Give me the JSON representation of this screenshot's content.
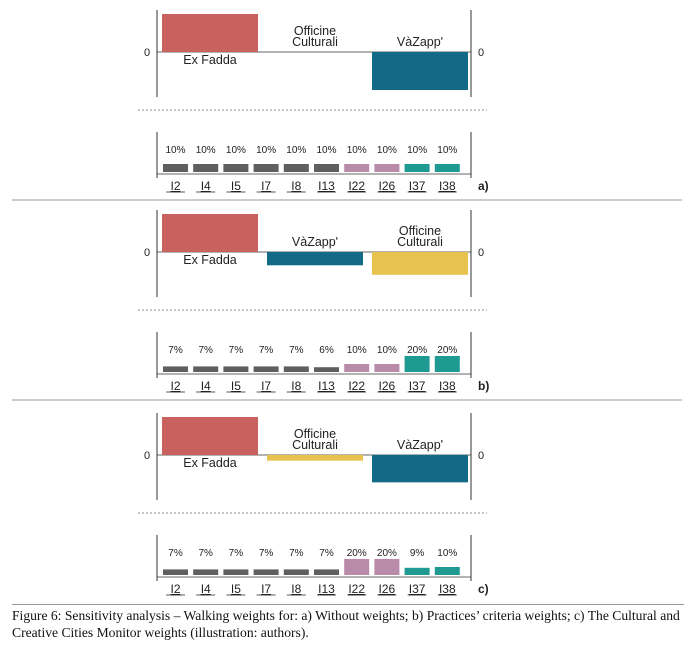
{
  "figure": {
    "caption": "Figure 6: Sensitivity analysis – Walking weights for: a) Without weights; b) Practices’ criteria weights; c) The Cultural and Creative Cities Monitor weights (illustration: authors)."
  },
  "chart_data": [
    {
      "panel": "a)",
      "top": {
        "type": "bar",
        "axis_label_left": "0",
        "axis_label_right": "0",
        "bars": [
          {
            "label": "Ex Fadda",
            "value": 1.0,
            "color": "#c9625f"
          },
          {
            "label": "Officine Culturali",
            "value": 0.0,
            "color": "#e8c24e"
          },
          {
            "label": "VàZapp'",
            "value": -1.0,
            "color": "#136a86"
          }
        ]
      },
      "bottom": {
        "type": "bar",
        "categories": [
          "I2",
          "I4",
          "I5",
          "I7",
          "I8",
          "I13",
          "I22",
          "I26",
          "I37",
          "I38"
        ],
        "weights": [
          10,
          10,
          10,
          10,
          10,
          10,
          10,
          10,
          10,
          10
        ],
        "value_labels": [
          "10%",
          "10%",
          "10%",
          "10%",
          "10%",
          "10%",
          "10%",
          "10%",
          "10%",
          "10%"
        ],
        "colors": [
          "#5f5f5f",
          "#5f5f5f",
          "#5f5f5f",
          "#5f5f5f",
          "#5f5f5f",
          "#5f5f5f",
          "#b98ba8",
          "#b98ba8",
          "#1f9a92",
          "#1f9a92"
        ]
      }
    },
    {
      "panel": "b)",
      "top": {
        "type": "bar",
        "axis_label_left": "0",
        "axis_label_right": "0",
        "bars": [
          {
            "label": "Ex Fadda",
            "value": 1.0,
            "color": "#c9625f"
          },
          {
            "label": "VàZapp'",
            "value": -0.35,
            "color": "#136a86"
          },
          {
            "label": "Officine Culturali",
            "value": -0.6,
            "color": "#e8c24e"
          }
        ]
      },
      "bottom": {
        "type": "bar",
        "categories": [
          "I2",
          "I4",
          "I5",
          "I7",
          "I8",
          "I13",
          "I22",
          "I26",
          "I37",
          "I38"
        ],
        "weights": [
          7,
          7,
          7,
          7,
          7,
          6,
          10,
          10,
          20,
          20
        ],
        "value_labels": [
          "7%",
          "7%",
          "7%",
          "7%",
          "7%",
          "6%",
          "10%",
          "10%",
          "20%",
          "20%"
        ],
        "colors": [
          "#5f5f5f",
          "#5f5f5f",
          "#5f5f5f",
          "#5f5f5f",
          "#5f5f5f",
          "#5f5f5f",
          "#b98ba8",
          "#b98ba8",
          "#1f9a92",
          "#1f9a92"
        ]
      }
    },
    {
      "panel": "c)",
      "top": {
        "type": "bar",
        "axis_label_left": "0",
        "axis_label_right": "0",
        "bars": [
          {
            "label": "Ex Fadda",
            "value": 1.0,
            "color": "#c9625f"
          },
          {
            "label": "Officine Culturali",
            "value": -0.15,
            "color": "#e8c24e"
          },
          {
            "label": "VàZapp'",
            "value": -0.72,
            "color": "#136a86"
          }
        ]
      },
      "bottom": {
        "type": "bar",
        "categories": [
          "I2",
          "I4",
          "I5",
          "I7",
          "I8",
          "I13",
          "I22",
          "I26",
          "I37",
          "I38"
        ],
        "weights": [
          7,
          7,
          7,
          7,
          7,
          7,
          20,
          20,
          9,
          10
        ],
        "value_labels": [
          "7%",
          "7%",
          "7%",
          "7%",
          "7%",
          "7%",
          "20%",
          "20%",
          "9%",
          "10%"
        ],
        "colors": [
          "#5f5f5f",
          "#5f5f5f",
          "#5f5f5f",
          "#5f5f5f",
          "#5f5f5f",
          "#5f5f5f",
          "#b98ba8",
          "#b98ba8",
          "#1f9a92",
          "#1f9a92"
        ]
      }
    }
  ]
}
